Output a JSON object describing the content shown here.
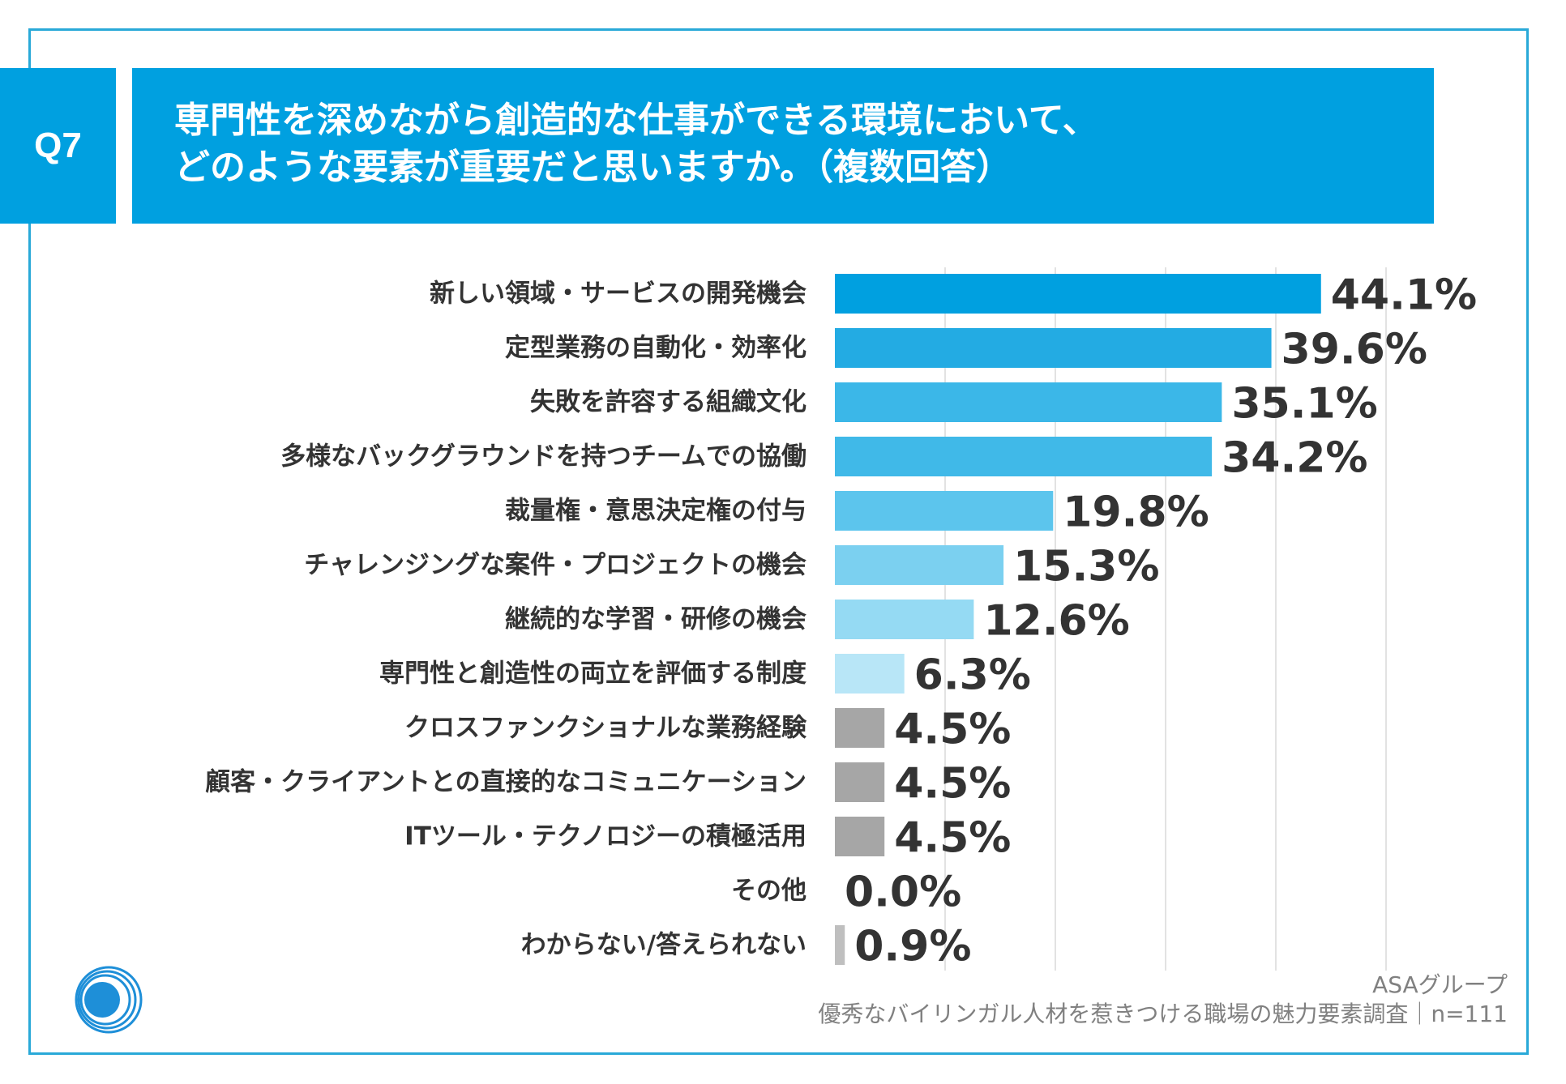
{
  "header": {
    "badge": "Q7",
    "title_line1": "専門性を深めながら創造的な仕事ができる環境において、",
    "title_line2": "どのような要素が重要だと思いますか。（複数回答）"
  },
  "chart_data": {
    "type": "bar",
    "orientation": "horizontal",
    "title": "専門性を深めながら創造的な仕事ができる環境において、どのような要素が重要だと思いますか。（複数回答）",
    "categories": [
      "新しい領域・サービスの開発機会",
      "定型業務の自動化・効率化",
      "失敗を許容する組織文化",
      "多様なバックグラウンドを持つチームでの協働",
      "裁量権・意思決定権の付与",
      "チャレンジングな案件・プロジェクトの機会",
      "継続的な学習・研修の機会",
      "専門性と創造性の両立を評価する制度",
      "クロスファンクショナルな業務経験",
      "顧客・クライアントとの直接的なコミュニケーション",
      "ITツール・テクノロジーの積極活用",
      "その他",
      "わからない/答えられない"
    ],
    "values": [
      44.1,
      39.6,
      35.1,
      34.2,
      19.8,
      15.3,
      12.6,
      6.3,
      4.5,
      4.5,
      4.5,
      0.0,
      0.9
    ],
    "value_labels": [
      "44.1%",
      "39.6%",
      "35.1%",
      "34.2%",
      "19.8%",
      "15.3%",
      "12.6%",
      "6.3%",
      "4.5%",
      "4.5%",
      "4.5%",
      "0.0%",
      "0.9%"
    ],
    "colors": [
      "#00a0e0",
      "#23abe3",
      "#3bb7e8",
      "#40b9e8",
      "#5cc5ed",
      "#7bd0f0",
      "#95daf3",
      "#b8e6f7",
      "#a6a6a6",
      "#a6a6a6",
      "#a6a6a6",
      "#bfbfbf",
      "#bfbfbf"
    ],
    "xlim": [
      0,
      50
    ],
    "grid": true,
    "unit": "%"
  },
  "footer": {
    "source_line1": "ASAグループ",
    "source_line2": "優秀なバイリンガル人材を惹きつける職場の魅力要素調査｜n=111"
  },
  "colors": {
    "accent": "#00a0e0",
    "border": "#29a9d8",
    "text": "#333333",
    "gray_bar": "#a6a6a6"
  }
}
